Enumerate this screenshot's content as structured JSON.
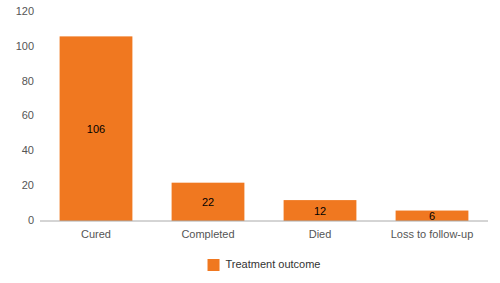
{
  "chart_data": {
    "type": "bar",
    "categories": [
      "Cured",
      "Completed",
      "Died",
      "Loss to follow-up"
    ],
    "series": [
      {
        "name": "Treatment outcome",
        "color": "#F07820",
        "values": [
          106,
          22,
          12,
          6
        ]
      }
    ],
    "ylim": [
      0,
      120
    ],
    "yticks": [
      0,
      20,
      40,
      60,
      80,
      100,
      120
    ],
    "grid": false,
    "legend": "bottom",
    "data_labels": true
  }
}
